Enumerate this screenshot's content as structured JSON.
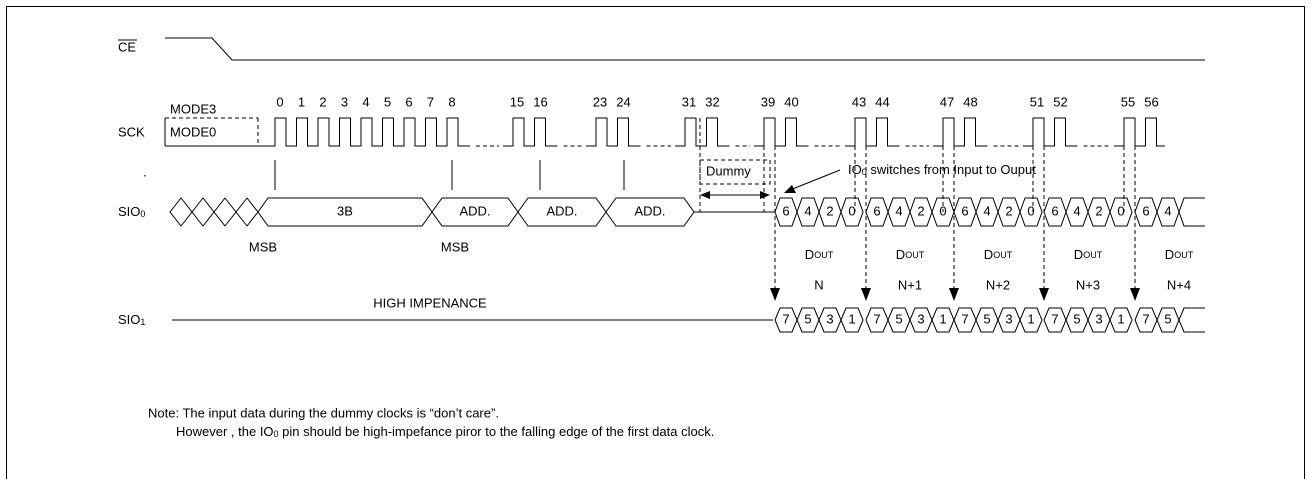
{
  "signals": {
    "ce": "CE",
    "sck": "SCK",
    "sio0": {
      "name": "SIO",
      "sub": "0"
    },
    "sio1": {
      "name": "SIO",
      "sub": "1"
    }
  },
  "dot": ".",
  "modes": [
    "MODE3",
    "MODE0"
  ],
  "clock_numbers": [
    "0",
    "1",
    "2",
    "3",
    "4",
    "5",
    "6",
    "7",
    "8",
    "15",
    "16",
    "23",
    "24",
    "31",
    "32",
    "39",
    "40",
    "43",
    "44",
    "47",
    "48",
    "51",
    "52",
    "55",
    "56"
  ],
  "dummy": "Dummy",
  "annotation": {
    "prefix": "IO",
    "sub": "0",
    "text": " switches from Input to Ouput"
  },
  "fields": [
    "3B",
    "ADD.",
    "ADD.",
    "ADD."
  ],
  "msb": [
    "MSB",
    "MSB"
  ],
  "sio0_bits": [
    "6",
    "4",
    "2",
    "0"
  ],
  "sio1_bits": [
    "7",
    "5",
    "3",
    "1"
  ],
  "dout": {
    "main": "D",
    "sub": "OUT"
  },
  "bytes": [
    "N",
    "N+1",
    "N+2",
    "N+3",
    "N+4"
  ],
  "high_z": "HIGH IMPENANCE",
  "note": {
    "line1": "Note: The input data during the dummy clocks is “don’t care”.",
    "line2": {
      "prefix": "However , the IO",
      "sub": "0",
      "suffix": " pin should be high-impefance piror to the falling edge of the first data clock."
    }
  }
}
